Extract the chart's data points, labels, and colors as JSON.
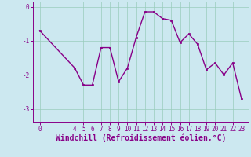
{
  "x": [
    0,
    4,
    5,
    6,
    7,
    8,
    9,
    10,
    11,
    12,
    13,
    14,
    15,
    16,
    17,
    18,
    19,
    20,
    21,
    22,
    23
  ],
  "y": [
    -0.7,
    -1.8,
    -2.3,
    -2.3,
    -1.2,
    -1.2,
    -2.2,
    -1.8,
    -0.9,
    -0.15,
    -0.15,
    -0.35,
    -0.4,
    -1.05,
    -0.8,
    -1.1,
    -1.85,
    -1.65,
    -2.0,
    -1.65,
    -2.7
  ],
  "line_color": "#880088",
  "marker": "s",
  "markersize": 2,
  "linewidth": 1.0,
  "bg_color": "#cce8f0",
  "grid_color": "#99ccbb",
  "xlabel": "Windchill (Refroidissement éolien,°C)",
  "xlabel_color": "#880088",
  "xlabel_fontsize": 7,
  "tick_color": "#880088",
  "tick_fontsize": 5.5,
  "ylim": [
    -3.4,
    0.15
  ],
  "xlim": [
    -0.8,
    23.8
  ],
  "yticks": [
    0,
    -1,
    -2,
    -3
  ],
  "xticks": [
    0,
    4,
    5,
    6,
    7,
    8,
    9,
    10,
    11,
    12,
    13,
    14,
    15,
    16,
    17,
    18,
    19,
    20,
    21,
    22,
    23
  ]
}
